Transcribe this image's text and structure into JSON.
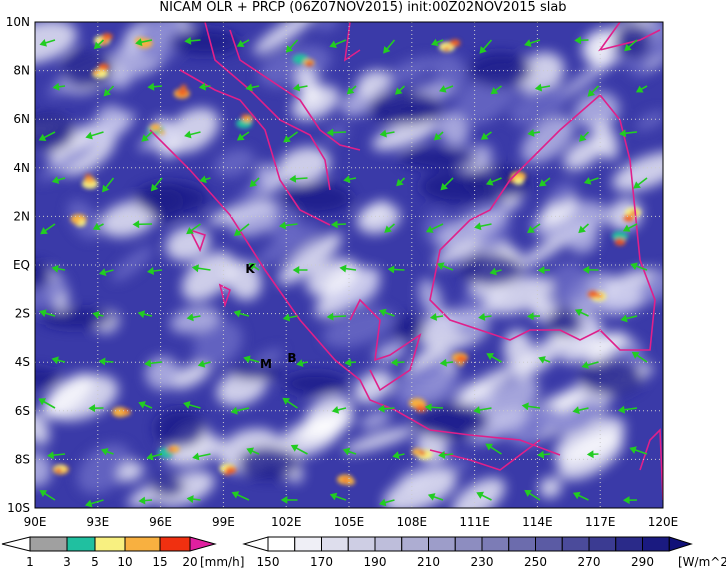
{
  "title": "NICAM OLR + PRCP (06Z07NOV2015) init:00Z02NOV2015 slab",
  "lat_labels": [
    "10N",
    "8N",
    "6N",
    "4N",
    "2N",
    "EQ",
    "2S",
    "4S",
    "6S",
    "8S",
    "10S"
  ],
  "lon_labels": [
    "90E",
    "93E",
    "96E",
    "99E",
    "102E",
    "105E",
    "108E",
    "111E",
    "114E",
    "117E",
    "120E"
  ],
  "stations": [
    "K",
    "M",
    "B"
  ],
  "precip_colorbar": {
    "labels": [
      "1",
      "3",
      "5",
      "10",
      "15",
      "20"
    ],
    "unit": "[mm/h]"
  },
  "olr_colorbar": {
    "labels": [
      "150",
      "170",
      "190",
      "210",
      "230",
      "250",
      "270",
      "290"
    ],
    "unit": "[W/m^2]"
  }
}
